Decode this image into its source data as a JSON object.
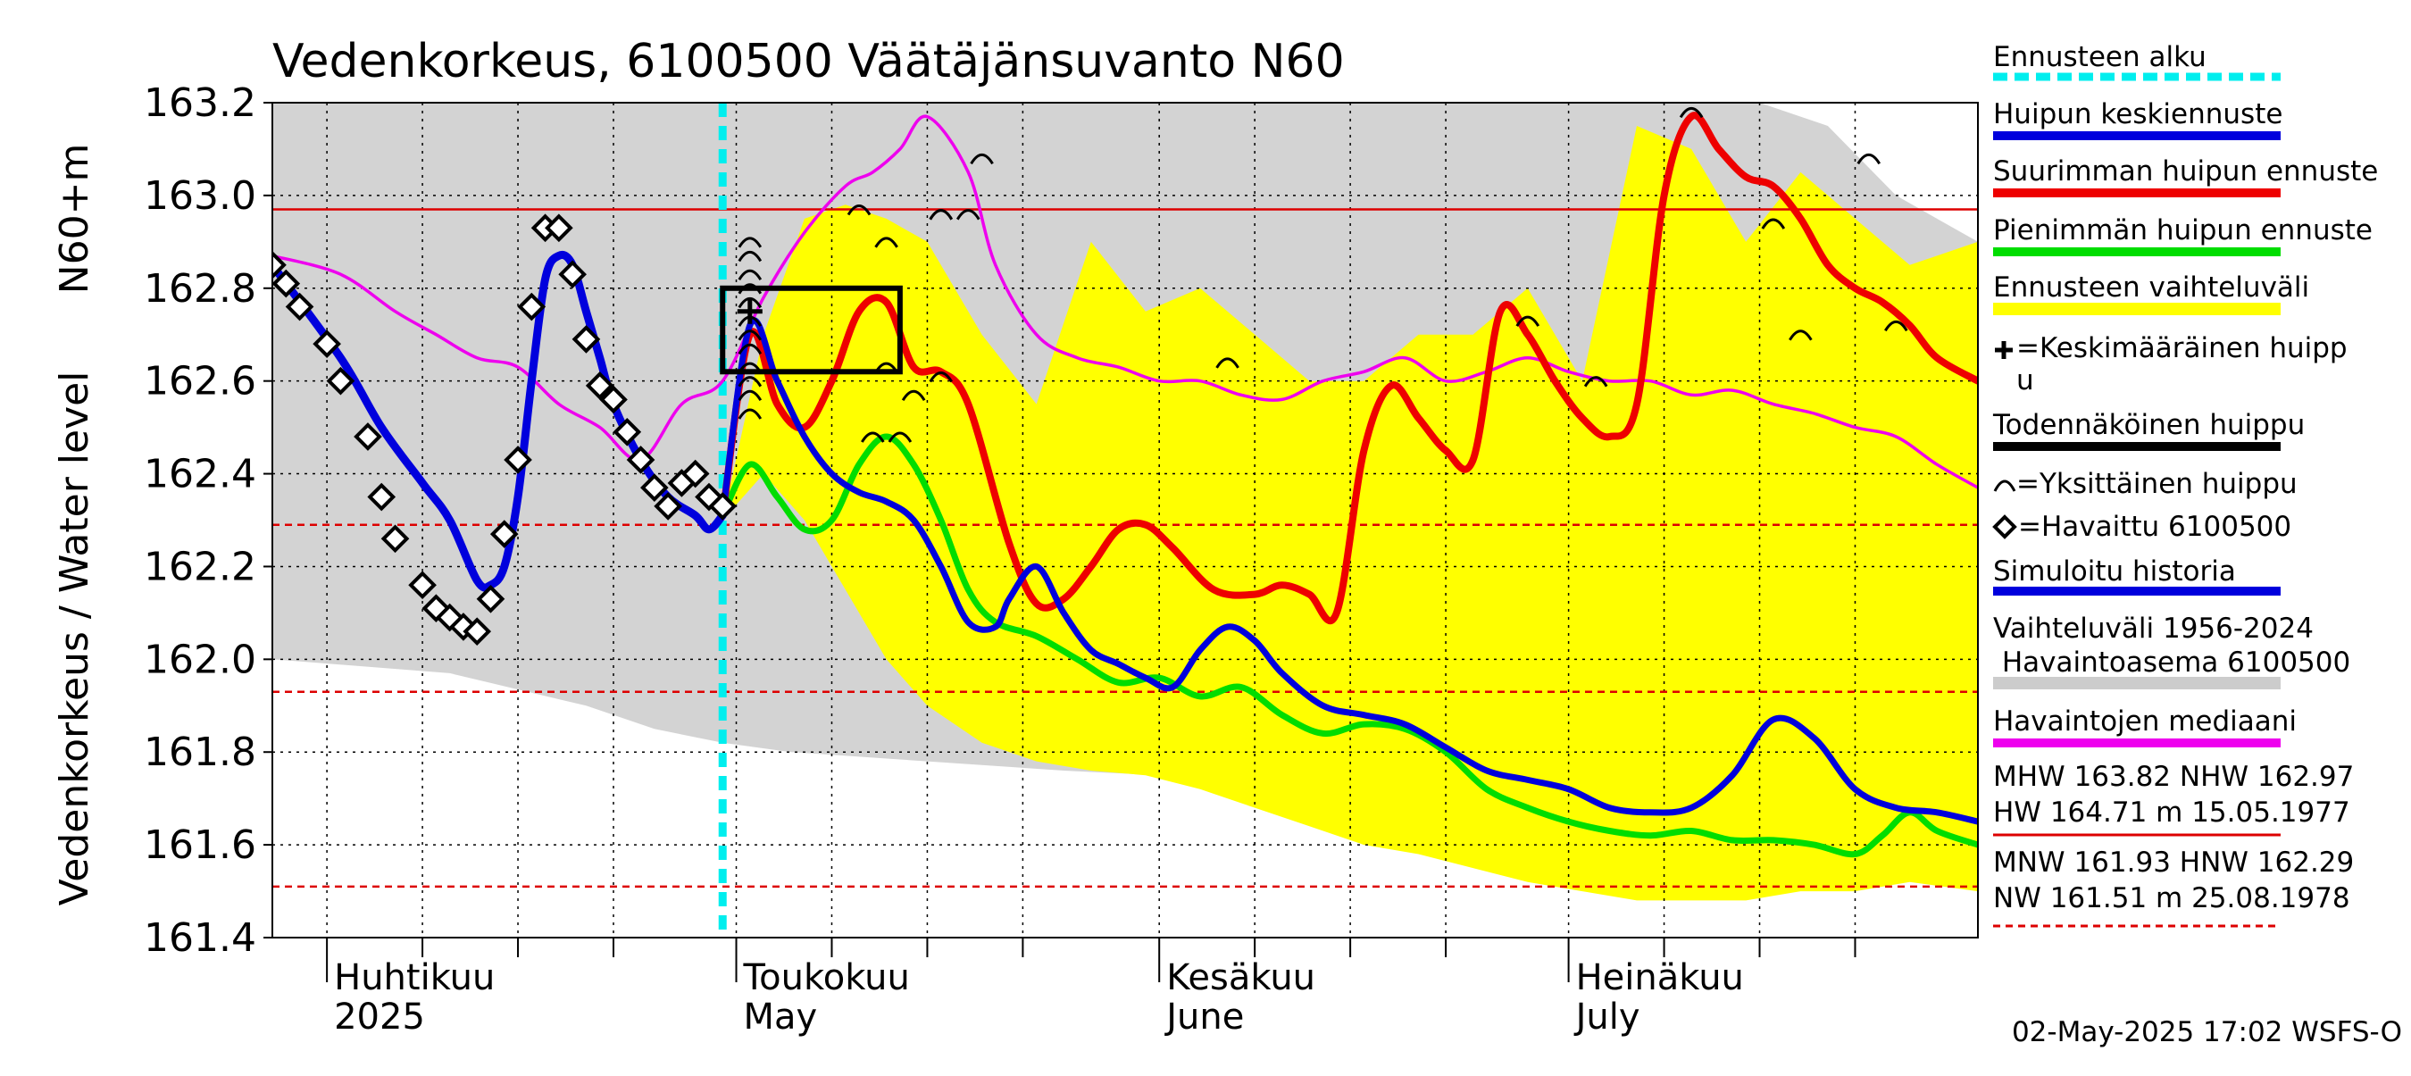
{
  "chart_data": {
    "type": "line",
    "title": "Vedenkorkeus, 6100500 Väätäjänsuvanto N60",
    "ylabel_outer": "Vedenkorkeus / Water level",
    "ylabel_inner": "N60+m",
    "ylim": [
      161.4,
      163.2
    ],
    "yticks": [
      161.4,
      161.6,
      161.8,
      162.0,
      162.2,
      162.4,
      162.6,
      162.8,
      163.0,
      163.2
    ],
    "ytick_labels": [
      "161.4",
      "161.6",
      "161.8",
      "162.0",
      "162.2",
      "162.4",
      "162.6",
      "162.8",
      "163.0",
      "163.2"
    ],
    "xlim": [
      "2025-03-28",
      "2025-07-31"
    ],
    "x_month_starts": [
      "2025-04-01",
      "2025-05-01",
      "2025-06-01",
      "2025-07-01"
    ],
    "x_labels": [
      {
        "date": "2025-04-01",
        "line1": "Huhtikuu",
        "line2": "2025"
      },
      {
        "date": "2025-05-01",
        "line1": "Toukokuu",
        "line2": "May"
      },
      {
        "date": "2025-06-01",
        "line1": "Kesäkuu",
        "line2": "June"
      },
      {
        "date": "2025-07-01",
        "line1": "Heinäkuu",
        "line2": "July"
      }
    ],
    "grid": true,
    "forecast_start": "2025-04-30",
    "reference_lines": [
      {
        "value": 162.97,
        "style": "solid",
        "color": "#dd0000"
      },
      {
        "value": 162.29,
        "style": "dashed",
        "color": "#dd0000"
      },
      {
        "value": 161.93,
        "style": "dashed",
        "color": "#dd0000"
      },
      {
        "value": 161.51,
        "style": "dashed",
        "color": "#dd0000"
      }
    ],
    "historical_range": {
      "x": [
        "2025-03-28",
        "2025-04-10",
        "2025-04-20",
        "2025-04-25",
        "2025-04-30",
        "2025-05-05",
        "2025-05-15",
        "2025-05-25",
        "2025-06-01",
        "2025-06-10",
        "2025-06-20",
        "2025-06-25",
        "2025-06-28",
        "2025-07-01",
        "2025-07-10",
        "2025-07-15",
        "2025-07-20",
        "2025-07-25",
        "2025-07-31"
      ],
      "upper": [
        163.2,
        163.2,
        163.2,
        163.2,
        163.2,
        163.2,
        163.2,
        163.2,
        163.2,
        163.2,
        163.2,
        163.2,
        163.2,
        163.2,
        163.2,
        163.2,
        163.15,
        163.0,
        162.9
      ],
      "lower": [
        162.0,
        161.97,
        161.9,
        161.85,
        161.82,
        161.8,
        161.78,
        161.76,
        161.75,
        161.74,
        161.72,
        161.68,
        161.7,
        162.0,
        161.9,
        161.88,
        161.85,
        161.82,
        161.78
      ]
    },
    "forecast_range": {
      "x": [
        "2025-04-30",
        "2025-05-03",
        "2025-05-06",
        "2025-05-09",
        "2025-05-12",
        "2025-05-15",
        "2025-05-19",
        "2025-05-23",
        "2025-05-27",
        "2025-05-31",
        "2025-06-04",
        "2025-06-08",
        "2025-06-12",
        "2025-06-16",
        "2025-06-20",
        "2025-06-24",
        "2025-06-28",
        "2025-07-02",
        "2025-07-06",
        "2025-07-10",
        "2025-07-14",
        "2025-07-18",
        "2025-07-22",
        "2025-07-26",
        "2025-07-31"
      ],
      "upper": [
        162.3,
        162.7,
        162.95,
        162.98,
        162.95,
        162.9,
        162.7,
        162.55,
        162.9,
        162.75,
        162.8,
        162.7,
        162.6,
        162.6,
        162.7,
        162.7,
        162.8,
        162.6,
        163.15,
        163.1,
        162.9,
        163.05,
        162.95,
        162.85,
        162.9
      ],
      "lower": [
        162.3,
        162.4,
        162.3,
        162.15,
        162.0,
        161.9,
        161.82,
        161.78,
        161.76,
        161.75,
        161.72,
        161.68,
        161.64,
        161.6,
        161.58,
        161.55,
        161.52,
        161.5,
        161.48,
        161.48,
        161.48,
        161.5,
        161.5,
        161.52,
        161.5
      ]
    },
    "series": [
      {
        "name": "Havaittu 6100500",
        "style": "diamond-markers",
        "color": "#000000",
        "x": [
          "2025-03-28",
          "2025-03-29",
          "2025-03-30",
          "2025-04-01",
          "2025-04-02",
          "2025-04-04",
          "2025-04-05",
          "2025-04-06",
          "2025-04-08",
          "2025-04-09",
          "2025-04-10",
          "2025-04-11",
          "2025-04-12",
          "2025-04-13",
          "2025-04-14",
          "2025-04-15",
          "2025-04-16",
          "2025-04-17",
          "2025-04-18",
          "2025-04-19",
          "2025-04-20",
          "2025-04-21",
          "2025-04-22",
          "2025-04-23",
          "2025-04-24",
          "2025-04-25",
          "2025-04-26",
          "2025-04-27",
          "2025-04-28",
          "2025-04-29",
          "2025-04-30"
        ],
        "y": [
          162.85,
          162.81,
          162.76,
          162.68,
          162.6,
          162.48,
          162.35,
          162.26,
          162.16,
          162.11,
          162.09,
          162.07,
          162.06,
          162.13,
          162.27,
          162.43,
          162.76,
          162.93,
          162.93,
          162.83,
          162.69,
          162.59,
          162.56,
          162.49,
          162.43,
          162.37,
          162.33,
          162.38,
          162.4,
          162.35,
          162.33
        ]
      },
      {
        "name": "Simuloitu historia",
        "style": "line",
        "color": "#0000dd",
        "x": [
          "2025-03-28",
          "2025-04-02",
          "2025-04-05",
          "2025-04-08",
          "2025-04-10",
          "2025-04-12",
          "2025-04-13",
          "2025-04-14",
          "2025-04-15",
          "2025-04-16",
          "2025-04-17",
          "2025-04-18",
          "2025-04-19",
          "2025-04-20",
          "2025-04-21",
          "2025-04-22",
          "2025-04-24",
          "2025-04-26",
          "2025-04-28",
          "2025-04-29",
          "2025-04-30"
        ],
        "y": [
          162.85,
          162.65,
          162.5,
          162.38,
          162.3,
          162.17,
          162.16,
          162.2,
          162.35,
          162.6,
          162.82,
          162.87,
          162.85,
          162.75,
          162.65,
          162.55,
          162.43,
          162.35,
          162.31,
          162.28,
          162.31
        ]
      },
      {
        "name": "Huipun keskiennuste",
        "style": "line",
        "color": "#0000dd",
        "x": [
          "2025-04-30",
          "2025-05-02",
          "2025-05-04",
          "2025-05-06",
          "2025-05-08",
          "2025-05-10",
          "2025-05-12",
          "2025-05-14",
          "2025-05-16",
          "2025-05-18",
          "2025-05-20",
          "2025-05-21",
          "2025-05-23",
          "2025-05-25",
          "2025-05-27",
          "2025-05-29",
          "2025-05-31",
          "2025-06-02",
          "2025-06-04",
          "2025-06-06",
          "2025-06-08",
          "2025-06-10",
          "2025-06-13",
          "2025-06-16",
          "2025-06-19",
          "2025-06-22",
          "2025-06-25",
          "2025-06-28",
          "2025-07-01",
          "2025-07-04",
          "2025-07-07",
          "2025-07-10",
          "2025-07-13",
          "2025-07-16",
          "2025-07-19",
          "2025-07-22",
          "2025-07-25",
          "2025-07-28",
          "2025-07-31"
        ],
        "y": [
          162.31,
          162.72,
          162.6,
          162.48,
          162.4,
          162.36,
          162.34,
          162.3,
          162.2,
          162.08,
          162.07,
          162.13,
          162.2,
          162.1,
          162.02,
          161.99,
          161.96,
          161.94,
          162.02,
          162.07,
          162.04,
          161.97,
          161.9,
          161.88,
          161.86,
          161.81,
          161.76,
          161.74,
          161.72,
          161.68,
          161.67,
          161.68,
          161.75,
          161.87,
          161.83,
          161.72,
          161.68,
          161.67,
          161.65
        ]
      },
      {
        "name": "Suurimman huipun ennuste",
        "style": "line",
        "color": "#ee0000",
        "x": [
          "2025-04-30",
          "2025-05-02",
          "2025-05-04",
          "2025-05-06",
          "2025-05-08",
          "2025-05-10",
          "2025-05-12",
          "2025-05-14",
          "2025-05-16",
          "2025-05-18",
          "2025-05-21",
          "2025-05-23",
          "2025-05-25",
          "2025-05-27",
          "2025-05-29",
          "2025-05-31",
          "2025-06-02",
          "2025-06-05",
          "2025-06-08",
          "2025-06-10",
          "2025-06-12",
          "2025-06-14",
          "2025-06-16",
          "2025-06-18",
          "2025-06-20",
          "2025-06-22",
          "2025-06-24",
          "2025-06-26",
          "2025-06-28",
          "2025-06-30",
          "2025-07-02",
          "2025-07-04",
          "2025-07-06",
          "2025-07-08",
          "2025-07-10",
          "2025-07-12",
          "2025-07-14",
          "2025-07-16",
          "2025-07-18",
          "2025-07-20",
          "2025-07-22",
          "2025-07-24",
          "2025-07-26",
          "2025-07-28",
          "2025-07-31"
        ],
        "y": [
          162.31,
          162.7,
          162.55,
          162.5,
          162.6,
          162.75,
          162.77,
          162.63,
          162.62,
          162.55,
          162.25,
          162.12,
          162.13,
          162.2,
          162.28,
          162.29,
          162.24,
          162.15,
          162.14,
          162.16,
          162.14,
          162.1,
          162.45,
          162.59,
          162.52,
          162.45,
          162.43,
          162.75,
          162.7,
          162.6,
          162.52,
          162.48,
          162.55,
          163.0,
          163.17,
          163.1,
          163.04,
          163.02,
          162.95,
          162.85,
          162.8,
          162.77,
          162.72,
          162.65,
          162.6
        ]
      },
      {
        "name": "Pienimmän huipun ennuste",
        "style": "line",
        "color": "#00dd00",
        "x": [
          "2025-04-30",
          "2025-05-02",
          "2025-05-04",
          "2025-05-06",
          "2025-05-08",
          "2025-05-10",
          "2025-05-12",
          "2025-05-14",
          "2025-05-16",
          "2025-05-18",
          "2025-05-20",
          "2025-05-23",
          "2025-05-26",
          "2025-05-29",
          "2025-06-01",
          "2025-06-04",
          "2025-06-07",
          "2025-06-10",
          "2025-06-13",
          "2025-06-16",
          "2025-06-19",
          "2025-06-22",
          "2025-06-25",
          "2025-06-28",
          "2025-07-01",
          "2025-07-04",
          "2025-07-07",
          "2025-07-10",
          "2025-07-13",
          "2025-07-16",
          "2025-07-19",
          "2025-07-22",
          "2025-07-24",
          "2025-07-26",
          "2025-07-28",
          "2025-07-31"
        ],
        "y": [
          162.31,
          162.42,
          162.35,
          162.28,
          162.3,
          162.42,
          162.48,
          162.42,
          162.3,
          162.15,
          162.08,
          162.05,
          162.0,
          161.95,
          161.96,
          161.92,
          161.94,
          161.88,
          161.84,
          161.86,
          161.85,
          161.8,
          161.72,
          161.68,
          161.65,
          161.63,
          161.62,
          161.63,
          161.61,
          161.61,
          161.6,
          161.58,
          161.62,
          161.67,
          161.63,
          161.6
        ]
      },
      {
        "name": "Havaintojen mediaani",
        "style": "line",
        "color": "#ee00ee",
        "x": [
          "2025-03-28",
          "2025-04-02",
          "2025-04-06",
          "2025-04-09",
          "2025-04-12",
          "2025-04-15",
          "2025-04-18",
          "2025-04-21",
          "2025-04-24",
          "2025-04-27",
          "2025-04-30",
          "2025-05-03",
          "2025-05-06",
          "2025-05-09",
          "2025-05-11",
          "2025-05-13",
          "2025-05-15",
          "2025-05-18",
          "2025-05-20",
          "2025-05-23",
          "2025-05-26",
          "2025-05-29",
          "2025-06-01",
          "2025-06-04",
          "2025-06-07",
          "2025-06-10",
          "2025-06-13",
          "2025-06-16",
          "2025-06-19",
          "2025-06-22",
          "2025-06-25",
          "2025-06-28",
          "2025-07-01",
          "2025-07-04",
          "2025-07-07",
          "2025-07-10",
          "2025-07-13",
          "2025-07-16",
          "2025-07-19",
          "2025-07-22",
          "2025-07-25",
          "2025-07-28",
          "2025-07-31"
        ],
        "y": [
          162.87,
          162.83,
          162.75,
          162.7,
          162.65,
          162.63,
          162.55,
          162.5,
          162.43,
          162.55,
          162.6,
          162.78,
          162.92,
          163.02,
          163.05,
          163.1,
          163.17,
          163.05,
          162.85,
          162.7,
          162.65,
          162.63,
          162.6,
          162.6,
          162.57,
          162.56,
          162.6,
          162.62,
          162.65,
          162.6,
          162.62,
          162.65,
          162.62,
          162.6,
          162.6,
          162.57,
          162.58,
          162.55,
          162.53,
          162.5,
          162.48,
          162.42,
          162.37
        ]
      },
      {
        "name": "Todennäköinen huippu",
        "style": "box",
        "color": "#000000",
        "x_range": [
          "2025-04-30",
          "2025-05-13"
        ],
        "y_range": [
          162.62,
          162.8
        ]
      },
      {
        "name": "Keskimääräinen huippu",
        "style": "plus-marker",
        "color": "#000000",
        "x": [
          "2025-05-02"
        ],
        "y": [
          162.75
        ]
      },
      {
        "name": "Yksittäinen huippu",
        "style": "arc-markers",
        "color": "#000000",
        "x": [
          "2025-05-02",
          "2025-05-02",
          "2025-05-02",
          "2025-05-02",
          "2025-05-02",
          "2025-05-02",
          "2025-05-02",
          "2025-05-02",
          "2025-05-02",
          "2025-05-02",
          "2025-05-02",
          "2025-05-02",
          "2025-05-10",
          "2025-05-11",
          "2025-05-12",
          "2025-05-12",
          "2025-05-13",
          "2025-05-14",
          "2025-05-16",
          "2025-05-16",
          "2025-05-16",
          "2025-05-18",
          "2025-05-19",
          "2025-06-06",
          "2025-06-28",
          "2025-07-03",
          "2025-07-10",
          "2025-07-16",
          "2025-07-18",
          "2025-07-23",
          "2025-07-25"
        ],
        "y": [
          162.9,
          162.87,
          162.83,
          162.8,
          162.77,
          162.73,
          162.7,
          162.67,
          162.63,
          162.6,
          162.57,
          162.53,
          162.97,
          162.48,
          162.9,
          162.63,
          162.48,
          162.57,
          162.96,
          162.96,
          162.61,
          162.96,
          163.08,
          162.64,
          162.73,
          162.6,
          163.18,
          162.94,
          162.7,
          163.08,
          162.72
        ]
      }
    ],
    "legend": {
      "placement": "right",
      "entries": [
        {
          "label": "Ennusteen alku",
          "symbol": "dashed-line",
          "color": "#00eeee"
        },
        {
          "label": "Huipun keskiennuste",
          "symbol": "line",
          "color": "#0000dd"
        },
        {
          "label": "Suurimman huipun ennuste",
          "symbol": "line",
          "color": "#ee0000"
        },
        {
          "label": "Pienimmän huipun ennuste",
          "symbol": "line",
          "color": "#00dd00"
        },
        {
          "label": "Ennusteen vaihteluväli",
          "symbol": "band",
          "color": "#ffff00"
        },
        {
          "label_line1": "=Keskimääräinen huipp",
          "label_line2": "u",
          "symbol": "plus",
          "color": "#000000"
        },
        {
          "label": "Todennäköinen huippu",
          "symbol": "line",
          "color": "#000000"
        },
        {
          "label": "=Yksittäinen huippu",
          "symbol": "arc",
          "color": "#000000"
        },
        {
          "label": "=Havaittu 6100500",
          "symbol": "diamond",
          "color": "#000000"
        },
        {
          "label": "Simuloitu historia",
          "symbol": "line",
          "color": "#0000dd"
        },
        {
          "label_line1": "Vaihteluväli 1956-2024",
          "label_line2": " Havaintoasema 6100500",
          "symbol": "band",
          "color": "#cccccc"
        },
        {
          "label": "Havaintojen mediaani",
          "symbol": "line",
          "color": "#ee00ee"
        },
        {
          "label_line1": "MHW 163.82 NHW 162.97",
          "label_line2": "HW 164.71 m 15.05.1977",
          "symbol": "line",
          "color": "#dd0000"
        },
        {
          "label_line1": "MNW 161.93 HNW 162.29",
          "label_line2": "NW 161.51 m 25.08.1978",
          "symbol": "dashed-line",
          "color": "#dd0000"
        }
      ]
    },
    "footer": "02-May-2025 17:02 WSFS-O"
  }
}
